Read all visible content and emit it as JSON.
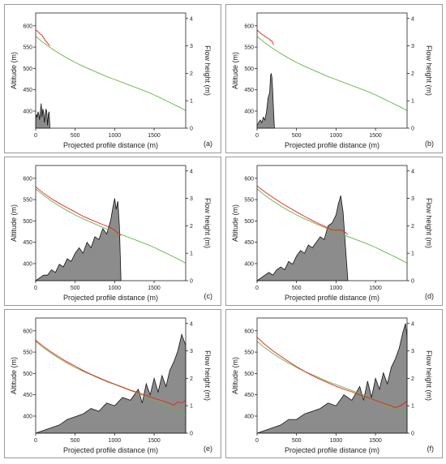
{
  "axes": {
    "xlabel": "Projected profile distance (m)",
    "ylabel_left": "Altitude (m)",
    "ylabel_right": "Flow height (m)",
    "x_ticks": [
      "0",
      "500",
      "1000",
      "1500"
    ],
    "y_left_ticks": [
      "400",
      "450",
      "500",
      "550",
      "600"
    ],
    "y_right_ticks": [
      "0",
      "1",
      "2",
      "3",
      "4"
    ]
  },
  "colors": {
    "terrain": "#66b34a",
    "flow_surface": "#e8211e",
    "flow_fill": "#8c8c8c",
    "flow_outline": "#111111"
  },
  "chart_data": [
    {
      "panel_label": "(a)",
      "type": "line",
      "xlim": [
        0,
        1900
      ],
      "ylim_left": [
        360,
        630
      ],
      "ylim_right": [
        0,
        4.2
      ],
      "terrain": {
        "x": [
          0,
          100,
          200,
          300,
          400,
          500,
          600,
          700,
          800,
          900,
          1000,
          1100,
          1200,
          1300,
          1400,
          1500,
          1600,
          1700,
          1800,
          1900
        ],
        "y": [
          575,
          560,
          547,
          535,
          524,
          514,
          505,
          497,
          489,
          481,
          474,
          467,
          460,
          453,
          446,
          438,
          429,
          420,
          411,
          401
        ]
      },
      "flow_surface": {
        "x": [
          0,
          20,
          40,
          60,
          80,
          100,
          120,
          140,
          160,
          180
        ],
        "y": [
          590,
          588,
          584,
          580,
          578,
          572,
          566,
          562,
          557,
          553
        ]
      },
      "flow_height": {
        "x": [
          0,
          10,
          20,
          30,
          40,
          50,
          60,
          70,
          80,
          90,
          100,
          110,
          120,
          130,
          140,
          150,
          160,
          170,
          180
        ],
        "y": [
          0.3,
          0.5,
          0.4,
          0.6,
          0.5,
          0.3,
          0.6,
          0.9,
          0.4,
          0.7,
          0.6,
          0.2,
          0.5,
          0.7,
          0.6,
          0.1,
          0.5,
          0.6,
          0.0
        ]
      }
    },
    {
      "panel_label": "(b)",
      "type": "line",
      "xlim": [
        0,
        1900
      ],
      "ylim_left": [
        360,
        630
      ],
      "ylim_right": [
        0,
        4.2
      ],
      "terrain": {
        "x": [
          0,
          100,
          200,
          300,
          400,
          500,
          600,
          700,
          800,
          900,
          1000,
          1100,
          1200,
          1300,
          1400,
          1500,
          1600,
          1700,
          1800,
          1900
        ],
        "y": [
          575,
          560,
          547,
          535,
          524,
          514,
          505,
          497,
          489,
          481,
          474,
          467,
          460,
          453,
          446,
          438,
          429,
          420,
          411,
          401
        ]
      },
      "flow_surface": {
        "x": [
          0,
          30,
          60,
          90,
          120,
          150,
          170,
          190,
          210
        ],
        "y": [
          590,
          585,
          580,
          577,
          572,
          570,
          566,
          564,
          555
        ]
      },
      "flow_height": {
        "x": [
          0,
          20,
          40,
          60,
          80,
          100,
          120,
          140,
          160,
          170,
          180,
          190,
          200,
          210,
          220
        ],
        "y": [
          0.1,
          0.2,
          0.3,
          0.2,
          0.4,
          0.3,
          0.6,
          1.1,
          1.3,
          1.9,
          2.0,
          1.8,
          1.2,
          0.6,
          0.0
        ]
      }
    },
    {
      "panel_label": "(c)",
      "type": "line",
      "xlim": [
        0,
        1900
      ],
      "ylim_left": [
        360,
        630
      ],
      "ylim_right": [
        0,
        4.2
      ],
      "terrain": {
        "x": [
          0,
          100,
          200,
          300,
          400,
          500,
          600,
          700,
          800,
          900,
          1000,
          1100,
          1200,
          1300,
          1400,
          1500,
          1600,
          1700,
          1800,
          1900
        ],
        "y": [
          575,
          560,
          547,
          535,
          524,
          514,
          505,
          497,
          489,
          481,
          474,
          467,
          460,
          453,
          446,
          438,
          429,
          420,
          411,
          401
        ]
      },
      "flow_surface": {
        "x": [
          0,
          100,
          200,
          300,
          400,
          500,
          600,
          700,
          800,
          900,
          950,
          1000,
          1050,
          1080
        ],
        "y": [
          580,
          565,
          552,
          541,
          531,
          521,
          511,
          503,
          495,
          488,
          484,
          478,
          470,
          466
        ]
      },
      "flow_height": {
        "x": [
          0,
          50,
          100,
          150,
          200,
          250,
          300,
          350,
          400,
          450,
          500,
          550,
          600,
          650,
          700,
          750,
          800,
          850,
          900,
          950,
          980,
          1000,
          1020,
          1040,
          1060,
          1080
        ],
        "y": [
          0.0,
          0.1,
          0.2,
          0.2,
          0.4,
          0.3,
          0.6,
          0.5,
          0.8,
          0.7,
          1.0,
          1.2,
          1.0,
          1.4,
          1.2,
          1.6,
          1.5,
          1.9,
          1.7,
          2.2,
          2.7,
          3.0,
          2.6,
          2.9,
          2.0,
          0.0
        ]
      }
    },
    {
      "panel_label": "(d)",
      "type": "line",
      "xlim": [
        0,
        1900
      ],
      "ylim_left": [
        360,
        630
      ],
      "ylim_right": [
        0,
        4.2
      ],
      "terrain": {
        "x": [
          0,
          100,
          200,
          300,
          400,
          500,
          600,
          700,
          800,
          900,
          1000,
          1100,
          1200,
          1300,
          1400,
          1500,
          1600,
          1700,
          1800,
          1900
        ],
        "y": [
          575,
          560,
          547,
          535,
          524,
          514,
          505,
          497,
          489,
          481,
          474,
          467,
          460,
          453,
          446,
          438,
          429,
          420,
          411,
          401
        ]
      },
      "flow_surface": {
        "x": [
          0,
          100,
          200,
          300,
          400,
          500,
          600,
          700,
          800,
          850,
          900,
          950,
          1000,
          1050,
          1100,
          1150
        ],
        "y": [
          582,
          568,
          555,
          543,
          532,
          521,
          511,
          501,
          492,
          488,
          483,
          479,
          478,
          479,
          476,
          468
        ]
      },
      "flow_height": {
        "x": [
          0,
          50,
          100,
          150,
          200,
          250,
          300,
          350,
          400,
          450,
          500,
          550,
          600,
          650,
          700,
          750,
          800,
          850,
          900,
          950,
          1000,
          1030,
          1060,
          1090,
          1120,
          1150
        ],
        "y": [
          0.0,
          0.1,
          0.2,
          0.3,
          0.2,
          0.4,
          0.5,
          0.4,
          0.7,
          0.6,
          0.9,
          1.1,
          1.0,
          1.3,
          1.2,
          1.4,
          1.6,
          1.5,
          2.0,
          2.1,
          2.4,
          2.8,
          3.1,
          2.5,
          1.2,
          0.0
        ]
      }
    },
    {
      "panel_label": "(e)",
      "type": "line",
      "xlim": [
        0,
        1900
      ],
      "ylim_left": [
        360,
        630
      ],
      "ylim_right": [
        0,
        4.2
      ],
      "terrain": {
        "x": [
          0,
          100,
          200,
          300,
          400,
          500,
          600,
          700,
          800,
          900,
          1000,
          1100,
          1200,
          1300,
          1400,
          1500,
          1600,
          1700,
          1800,
          1900
        ],
        "y": [
          575,
          560,
          547,
          535,
          524,
          514,
          505,
          497,
          489,
          481,
          474,
          467,
          460,
          453,
          446,
          438,
          429,
          420,
          411,
          401
        ]
      },
      "flow_surface": {
        "x": [
          0,
          100,
          200,
          300,
          400,
          500,
          600,
          700,
          800,
          900,
          1000,
          1100,
          1200,
          1300,
          1400,
          1500,
          1600,
          1700,
          1750,
          1800,
          1850,
          1900
        ],
        "y": [
          578,
          563,
          550,
          538,
          527,
          517,
          507,
          498,
          490,
          482,
          475,
          468,
          461,
          455,
          448,
          442,
          436,
          430,
          426,
          433,
          431,
          437
        ]
      },
      "flow_height": {
        "x": [
          0,
          100,
          200,
          300,
          400,
          500,
          600,
          700,
          800,
          900,
          1000,
          1100,
          1200,
          1300,
          1350,
          1400,
          1450,
          1500,
          1550,
          1600,
          1650,
          1700,
          1750,
          1800,
          1850,
          1900
        ],
        "y": [
          0.0,
          0.1,
          0.2,
          0.3,
          0.5,
          0.6,
          0.7,
          0.9,
          0.8,
          1.1,
          1.0,
          1.3,
          1.2,
          1.6,
          1.1,
          1.8,
          1.4,
          2.0,
          1.5,
          2.1,
          1.7,
          2.3,
          2.6,
          3.0,
          3.6,
          3.2
        ]
      }
    },
    {
      "panel_label": "(f)",
      "type": "line",
      "xlim": [
        0,
        1900
      ],
      "ylim_left": [
        360,
        630
      ],
      "ylim_right": [
        0,
        4.2
      ],
      "terrain": {
        "x": [
          0,
          100,
          200,
          300,
          400,
          500,
          600,
          700,
          800,
          900,
          1000,
          1100,
          1200,
          1300,
          1400,
          1500,
          1600,
          1700,
          1800,
          1900
        ],
        "y": [
          575,
          560,
          547,
          535,
          524,
          514,
          505,
          497,
          489,
          481,
          474,
          467,
          460,
          453,
          446,
          438,
          429,
          420,
          411,
          401
        ]
      },
      "flow_surface": {
        "x": [
          0,
          100,
          200,
          300,
          400,
          500,
          600,
          700,
          800,
          900,
          1000,
          1100,
          1200,
          1300,
          1400,
          1500,
          1600,
          1700,
          1750,
          1800,
          1850,
          1900
        ],
        "y": [
          585,
          568,
          553,
          540,
          528,
          516,
          505,
          495,
          486,
          478,
          470,
          463,
          457,
          450,
          444,
          437,
          430,
          424,
          420,
          423,
          428,
          436
        ]
      },
      "flow_height": {
        "x": [
          0,
          100,
          200,
          300,
          400,
          500,
          600,
          700,
          800,
          900,
          1000,
          1100,
          1200,
          1300,
          1350,
          1400,
          1450,
          1500,
          1550,
          1600,
          1650,
          1700,
          1750,
          1800,
          1850,
          1880,
          1900
        ],
        "y": [
          0.0,
          0.1,
          0.2,
          0.3,
          0.5,
          0.5,
          0.7,
          0.8,
          0.9,
          1.1,
          1.0,
          1.4,
          1.2,
          1.7,
          1.2,
          1.9,
          1.3,
          2.0,
          1.6,
          2.2,
          1.8,
          2.4,
          2.7,
          3.1,
          3.7,
          4.0,
          3.5
        ]
      }
    }
  ]
}
